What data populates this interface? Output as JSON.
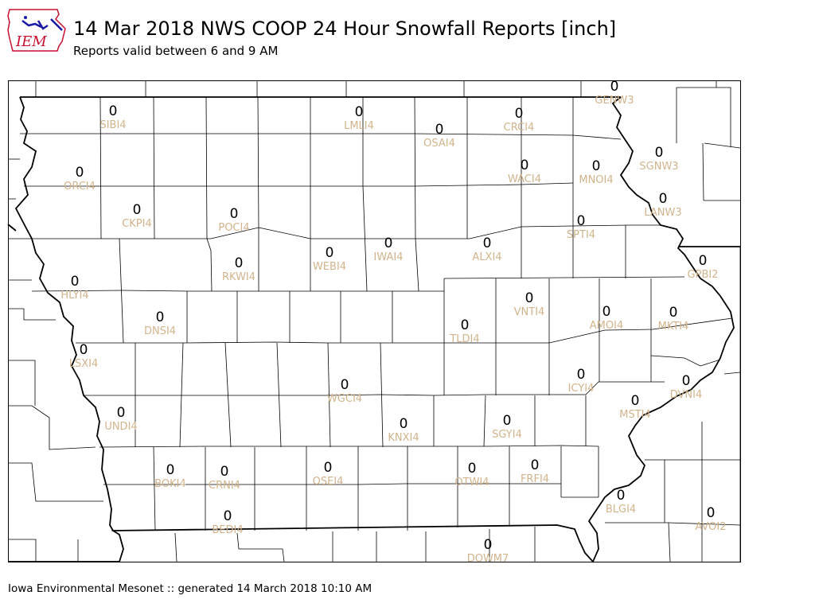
{
  "header": {
    "logo_text": "IEM",
    "title": "14 Mar 2018 NWS COOP 24 Hour Snowfall Reports [inch]",
    "subtitle": "Reports valid between 6 and 9 AM"
  },
  "footer": {
    "text": "Iowa Environmental Mesonet :: generated 14 March 2018 10:10 AM"
  },
  "colors": {
    "station_label": "#d2b48c",
    "value": "#000000",
    "logo_red": "#c8102e",
    "logo_blue": "#1a1aa6"
  },
  "stations": [
    {
      "id": "SIBI4",
      "value": "0"
    },
    {
      "id": "LMLI4",
      "value": "0"
    },
    {
      "id": "OSAI4",
      "value": "0"
    },
    {
      "id": "CRCI4",
      "value": "0"
    },
    {
      "id": "GENW3",
      "value": "0"
    },
    {
      "id": "ORCI4",
      "value": "0"
    },
    {
      "id": "WACI4",
      "value": "0"
    },
    {
      "id": "MNOI4",
      "value": "0"
    },
    {
      "id": "SGNW3",
      "value": "0"
    },
    {
      "id": "CKPI4",
      "value": "0"
    },
    {
      "id": "POCI4",
      "value": "0"
    },
    {
      "id": "LANW3",
      "value": "0"
    },
    {
      "id": "SPTI4",
      "value": "0"
    },
    {
      "id": "ALXI4",
      "value": "0"
    },
    {
      "id": "IWAI4",
      "value": "0"
    },
    {
      "id": "WEBI4",
      "value": "0"
    },
    {
      "id": "RKWI4",
      "value": "0"
    },
    {
      "id": "GPBI2",
      "value": "0"
    },
    {
      "id": "HLYI4",
      "value": "0"
    },
    {
      "id": "VNTI4",
      "value": "0"
    },
    {
      "id": "AMOI4",
      "value": "0"
    },
    {
      "id": "MKTI4",
      "value": "0"
    },
    {
      "id": "DNSI4",
      "value": "0"
    },
    {
      "id": "TLDI4",
      "value": "0"
    },
    {
      "id": "LSXI4",
      "value": "0"
    },
    {
      "id": "ICYI4",
      "value": "0"
    },
    {
      "id": "DVNI4",
      "value": "0"
    },
    {
      "id": "WGCI4",
      "value": "0"
    },
    {
      "id": "MSTI4",
      "value": "0"
    },
    {
      "id": "UNDI4",
      "value": "0"
    },
    {
      "id": "KNXI4",
      "value": "0"
    },
    {
      "id": "SGYI4",
      "value": "0"
    },
    {
      "id": "BOKI4",
      "value": "0"
    },
    {
      "id": "CRNI4",
      "value": "0"
    },
    {
      "id": "OSEI4",
      "value": "0"
    },
    {
      "id": "OTWI4",
      "value": "0"
    },
    {
      "id": "FRFI4",
      "value": "0"
    },
    {
      "id": "BLGI4",
      "value": "0"
    },
    {
      "id": "AVOI2",
      "value": "0"
    },
    {
      "id": "BEDI4",
      "value": "0"
    },
    {
      "id": "DOWM7",
      "value": "0"
    }
  ]
}
